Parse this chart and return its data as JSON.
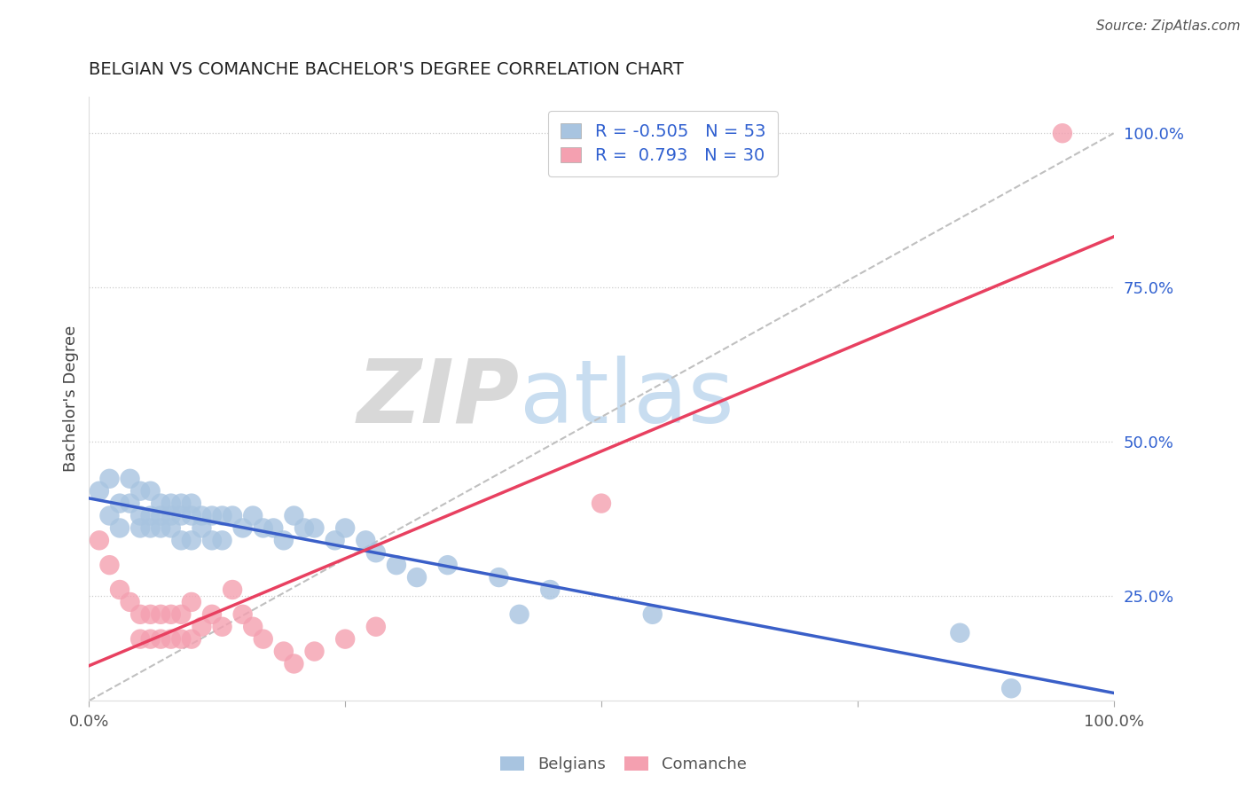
{
  "title": "BELGIAN VS COMANCHE BACHELOR'S DEGREE CORRELATION CHART",
  "source": "Source: ZipAtlas.com",
  "ylabel": "Bachelor's Degree",
  "watermark_zip": "ZIP",
  "watermark_atlas": "atlas",
  "x_min": 0.0,
  "x_max": 1.0,
  "y_min": 0.08,
  "y_max": 1.06,
  "y_ticks": [
    0.25,
    0.5,
    0.75,
    1.0
  ],
  "y_tick_labels": [
    "25.0%",
    "50.0%",
    "75.0%",
    "100.0%"
  ],
  "belgian_color": "#a8c4e0",
  "comanche_color": "#f4a0b0",
  "belgian_line_color": "#3a5fc8",
  "comanche_line_color": "#e84060",
  "ref_line_color": "#c0c0c0",
  "title_color": "#222222",
  "legend_text_color": "#3060d0",
  "tick_color": "#555555",
  "r_belgian": -0.505,
  "n_belgian": 53,
  "r_comanche": 0.793,
  "n_comanche": 30,
  "belgian_x": [
    0.01,
    0.02,
    0.02,
    0.03,
    0.03,
    0.04,
    0.04,
    0.05,
    0.05,
    0.05,
    0.06,
    0.06,
    0.06,
    0.07,
    0.07,
    0.07,
    0.08,
    0.08,
    0.08,
    0.09,
    0.09,
    0.09,
    0.1,
    0.1,
    0.1,
    0.11,
    0.11,
    0.12,
    0.12,
    0.13,
    0.13,
    0.14,
    0.15,
    0.16,
    0.17,
    0.18,
    0.19,
    0.2,
    0.21,
    0.22,
    0.24,
    0.25,
    0.27,
    0.28,
    0.3,
    0.32,
    0.35,
    0.4,
    0.42,
    0.45,
    0.55,
    0.85,
    0.9
  ],
  "belgian_y": [
    0.42,
    0.44,
    0.38,
    0.4,
    0.36,
    0.44,
    0.4,
    0.42,
    0.38,
    0.36,
    0.42,
    0.38,
    0.36,
    0.4,
    0.38,
    0.36,
    0.4,
    0.38,
    0.36,
    0.4,
    0.38,
    0.34,
    0.4,
    0.38,
    0.34,
    0.38,
    0.36,
    0.38,
    0.34,
    0.38,
    0.34,
    0.38,
    0.36,
    0.38,
    0.36,
    0.36,
    0.34,
    0.38,
    0.36,
    0.36,
    0.34,
    0.36,
    0.34,
    0.32,
    0.3,
    0.28,
    0.3,
    0.28,
    0.22,
    0.26,
    0.22,
    0.19,
    0.1
  ],
  "comanche_x": [
    0.01,
    0.02,
    0.03,
    0.04,
    0.05,
    0.05,
    0.06,
    0.06,
    0.07,
    0.07,
    0.08,
    0.08,
    0.09,
    0.09,
    0.1,
    0.1,
    0.11,
    0.12,
    0.13,
    0.14,
    0.15,
    0.16,
    0.17,
    0.19,
    0.2,
    0.22,
    0.25,
    0.28,
    0.5,
    0.95
  ],
  "comanche_y": [
    0.34,
    0.3,
    0.26,
    0.24,
    0.22,
    0.18,
    0.22,
    0.18,
    0.22,
    0.18,
    0.22,
    0.18,
    0.22,
    0.18,
    0.24,
    0.18,
    0.2,
    0.22,
    0.2,
    0.26,
    0.22,
    0.2,
    0.18,
    0.16,
    0.14,
    0.16,
    0.18,
    0.2,
    0.4,
    1.0
  ]
}
